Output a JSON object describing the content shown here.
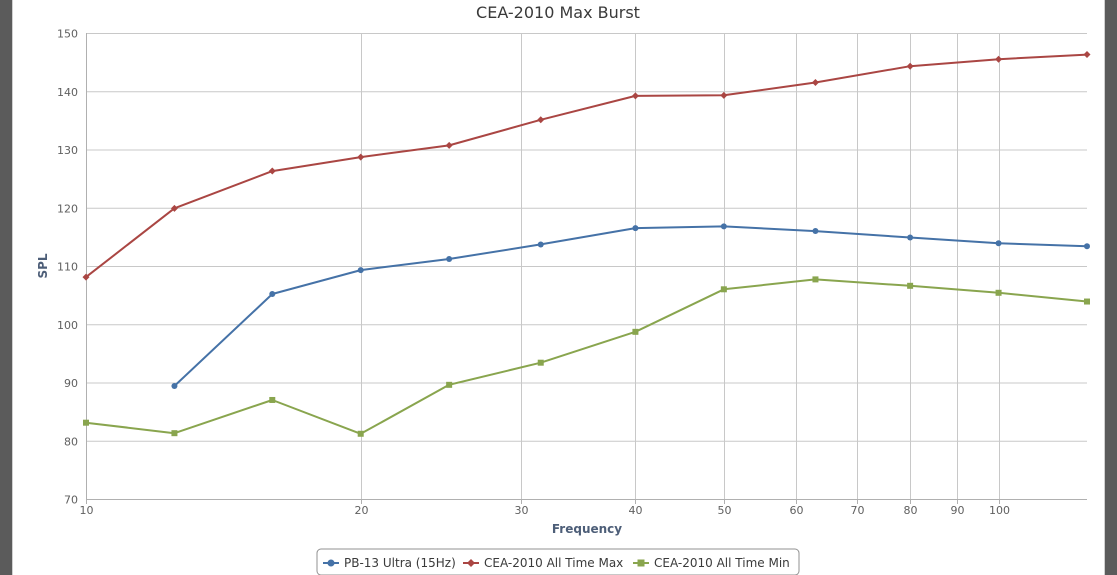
{
  "chart_data": {
    "type": "line",
    "title": "CEA-2010 Max Burst",
    "xlabel": "Frequency",
    "ylabel": "SPL",
    "x_scale": "log",
    "xlim": [
      10,
      125
    ],
    "ylim": [
      70,
      150
    ],
    "x_ticks": [
      10,
      20,
      30,
      40,
      50,
      60,
      70,
      80,
      90,
      100
    ],
    "y_ticks": [
      70,
      80,
      90,
      100,
      110,
      120,
      130,
      140,
      150
    ],
    "grid": true,
    "legend_position": "bottom-center",
    "series": [
      {
        "name": "PB-13 Ultra (15Hz)",
        "color": "#4572a7",
        "marker": "circle",
        "x": [
          12.5,
          16,
          20,
          25,
          31.5,
          40,
          50,
          63,
          80,
          100,
          125
        ],
        "y": [
          89.4,
          105.2,
          109.3,
          111.2,
          113.7,
          116.5,
          116.8,
          116.0,
          114.9,
          113.9,
          113.4
        ]
      },
      {
        "name": "CEA-2010 All Time Max",
        "color": "#aa4643",
        "marker": "diamond",
        "x": [
          10,
          12.5,
          16,
          20,
          25,
          31.5,
          40,
          50,
          63,
          80,
          100,
          125
        ],
        "y": [
          108.1,
          119.9,
          126.3,
          128.7,
          130.7,
          135.1,
          139.2,
          139.3,
          141.5,
          144.3,
          145.5,
          146.3
        ]
      },
      {
        "name": "CEA-2010 All Time Min",
        "color": "#89a54e",
        "marker": "square",
        "x": [
          10,
          12.5,
          16,
          20,
          25,
          31.5,
          40,
          50,
          63,
          80,
          100,
          125
        ],
        "y": [
          83.1,
          81.3,
          87.0,
          81.2,
          89.6,
          93.4,
          98.7,
          106.0,
          107.7,
          106.6,
          105.4,
          103.9
        ]
      }
    ]
  }
}
